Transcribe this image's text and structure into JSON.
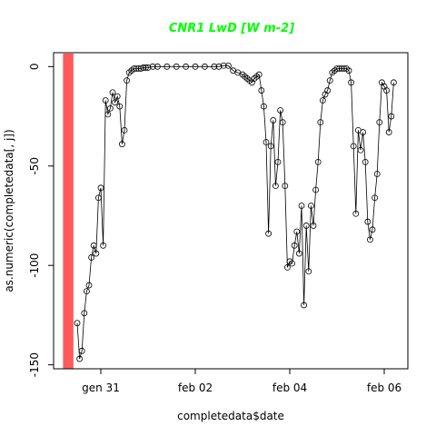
{
  "chart_data": {
    "type": "line",
    "title": "CNR1 LwD [W m-2]",
    "title_color": "#00ff00",
    "xlabel": "completedata$date",
    "ylabel": "as.numeric(completedata[, j])",
    "x_tick_labels": [
      "gen 31",
      "feb 02",
      "feb 04",
      "feb 06"
    ],
    "x_tick_values": [
      1,
      3,
      5,
      7
    ],
    "y_tick_labels": [
      "0",
      "-50",
      "-100",
      "-150"
    ],
    "y_tick_values": [
      0,
      -50,
      -100,
      -150
    ],
    "xlim": [
      0.0,
      7.5
    ],
    "ylim": [
      -152,
      7
    ],
    "grid": false,
    "line_color": "#000000",
    "marker": "open-circle",
    "highlight_band": {
      "x_range": [
        0.2,
        0.42
      ],
      "color": "#ff5a5a"
    },
    "series": [
      {
        "x": [
          0.5,
          0.55,
          0.6,
          0.65,
          0.7,
          0.75,
          0.8,
          0.85,
          0.9,
          0.95,
          1.0,
          1.05,
          1.1,
          1.15,
          1.2,
          1.25,
          1.3,
          1.35,
          1.4,
          1.45,
          1.5,
          1.55,
          1.6,
          1.65,
          1.7,
          1.75,
          1.8,
          1.85,
          1.9,
          1.95,
          2.0,
          2.1,
          2.2,
          2.4,
          2.6,
          2.8,
          3.0,
          3.2,
          3.4,
          3.5,
          3.6,
          3.7,
          3.8,
          3.9,
          4.0,
          4.05,
          4.1,
          4.15,
          4.2,
          4.25,
          4.3,
          4.35,
          4.4,
          4.45,
          4.5,
          4.55,
          4.6,
          4.65,
          4.7,
          4.75,
          4.8,
          4.85,
          4.9,
          4.95,
          5.0,
          5.05,
          5.1,
          5.15,
          5.2,
          5.25,
          5.3,
          5.35,
          5.4,
          5.45,
          5.5,
          5.55,
          5.6,
          5.65,
          5.7,
          5.75,
          5.8,
          5.85,
          5.9,
          5.95,
          6.0,
          6.05,
          6.1,
          6.15,
          6.2,
          6.25,
          6.3,
          6.35,
          6.4,
          6.45,
          6.5,
          6.55,
          6.6,
          6.65,
          6.7,
          6.75,
          6.8,
          6.85,
          6.9,
          6.95,
          7.0,
          7.05,
          7.1,
          7.15,
          7.2
        ],
        "y": [
          -129,
          -147,
          -143,
          -124,
          -113,
          -110,
          -96,
          -90,
          -94,
          -66,
          -61,
          -90,
          -17,
          -24,
          -21,
          -13,
          -18,
          -15,
          -20,
          -39,
          -32,
          -7,
          -3,
          -2,
          -1,
          -1,
          -1,
          -1,
          -0.5,
          -0.5,
          -0.5,
          0,
          0,
          0,
          0,
          0,
          0,
          0,
          0,
          0,
          0.5,
          0.5,
          -2,
          -3,
          -4,
          -5,
          -6,
          -7,
          -8,
          -6,
          -5,
          -4,
          -12,
          -20,
          -38,
          -84,
          -40,
          -27,
          -60,
          -48,
          -22,
          -28,
          -60,
          -101,
          -98,
          -99,
          -90,
          -83,
          -94,
          -70,
          -120,
          -80,
          -103,
          -70,
          -80,
          -62,
          -48,
          -28,
          -17,
          -14,
          -12,
          -7,
          -3,
          -2,
          -1,
          -1,
          -1,
          -1,
          -1,
          -2,
          -8,
          -40,
          -74,
          -32,
          -42,
          -33,
          -48,
          -78,
          -87,
          -82,
          -66,
          -54,
          -28,
          -8,
          -10,
          -12,
          -33,
          -25,
          -8
        ]
      }
    ]
  }
}
